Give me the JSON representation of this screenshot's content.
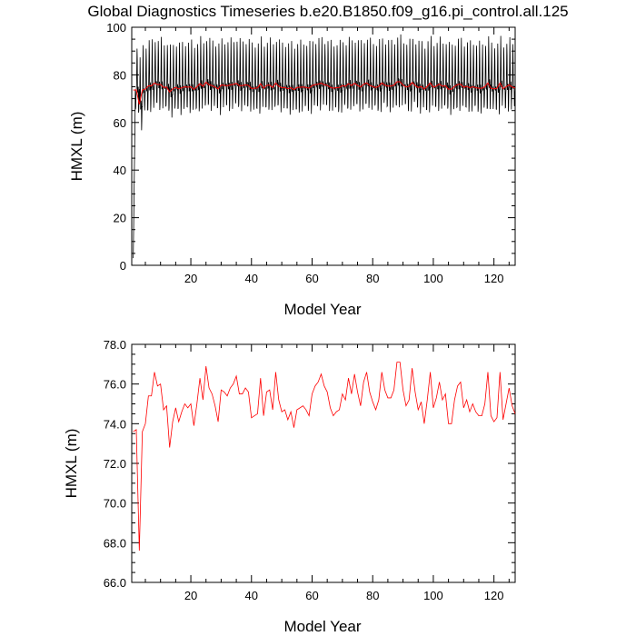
{
  "title": "Global Diagnostics Timeseries b.e20.B1850.f09_g16.pi_control.all.125",
  "chart_data": [
    {
      "type": "line",
      "xlabel": "Model Year",
      "ylabel": "HMXL (m)",
      "xlim": [
        0.5,
        127
      ],
      "ylim": [
        0,
        100
      ],
      "x_ticks": [
        20,
        40,
        60,
        80,
        100,
        120
      ],
      "y_ticks": [
        0,
        20,
        40,
        60,
        80,
        100
      ],
      "x_tick_labels": [
        "20",
        "40",
        "60",
        "80",
        "100",
        "120"
      ],
      "y_tick_labels": [
        "0",
        "20",
        "40",
        "60",
        "80",
        "100"
      ],
      "series": [
        {
          "color": "#000000",
          "kind": "monthly",
          "amplitude_high": 17,
          "amplitude_low": 11
        },
        {
          "color": "#ff0000",
          "kind": "annual-mean"
        }
      ]
    },
    {
      "type": "line",
      "xlabel": "Model Year",
      "ylabel": "HMXL (m)",
      "xlim": [
        0.5,
        127
      ],
      "ylim": [
        66,
        78
      ],
      "x_ticks": [
        20,
        40,
        60,
        80,
        100,
        120
      ],
      "y_ticks": [
        66,
        68,
        70,
        72,
        74,
        76,
        78
      ],
      "x_tick_labels": [
        "20",
        "40",
        "60",
        "80",
        "100",
        "120"
      ],
      "y_tick_labels": [
        "66.0",
        "68.0",
        "70.0",
        "72.0",
        "74.0",
        "76.0",
        "78.0"
      ],
      "series": [
        {
          "color": "#ff0000",
          "x_start": 1,
          "values": [
            73.6,
            73.7,
            67.6,
            73.6,
            74.0,
            75.4,
            75.4,
            76.6,
            75.9,
            76.0,
            74.7,
            74.9,
            72.8,
            74.1,
            74.8,
            74.1,
            74.6,
            75.0,
            74.8,
            75.0,
            73.9,
            75.0,
            76.3,
            75.2,
            76.9,
            75.8,
            75.5,
            74.9,
            74.1,
            75.7,
            75.6,
            75.4,
            75.8,
            76.0,
            76.4,
            75.5,
            75.5,
            75.8,
            75.6,
            74.3,
            74.4,
            74.5,
            76.3,
            74.4,
            75.6,
            75.7,
            74.7,
            76.6,
            75.2,
            74.6,
            74.7,
            74.2,
            74.6,
            73.8,
            74.7,
            74.8,
            74.9,
            74.7,
            74.4,
            75.5,
            75.9,
            76.1,
            76.5,
            75.9,
            75.6,
            74.8,
            74.4,
            74.6,
            74.7,
            75.5,
            75.2,
            76.3,
            75.5,
            76.5,
            75.6,
            74.9,
            76.1,
            76.6,
            75.6,
            75.1,
            74.7,
            75.2,
            76.6,
            75.7,
            75.3,
            75.3,
            75.7,
            77.1,
            77.1,
            75.7,
            74.9,
            75.2,
            76.8,
            75.6,
            74.7,
            75.1,
            74.0,
            75.2,
            76.6,
            74.8,
            75.3,
            76.1,
            75.2,
            75.5,
            74.0,
            74.0,
            75.2,
            75.9,
            76.1,
            74.8,
            75.2,
            74.6,
            75.0,
            74.6,
            74.4,
            74.4,
            75.0,
            76.6,
            74.4,
            74.1,
            74.3,
            76.6,
            74.2,
            75.0,
            75.8,
            74.9,
            74.5
          ]
        }
      ]
    }
  ]
}
